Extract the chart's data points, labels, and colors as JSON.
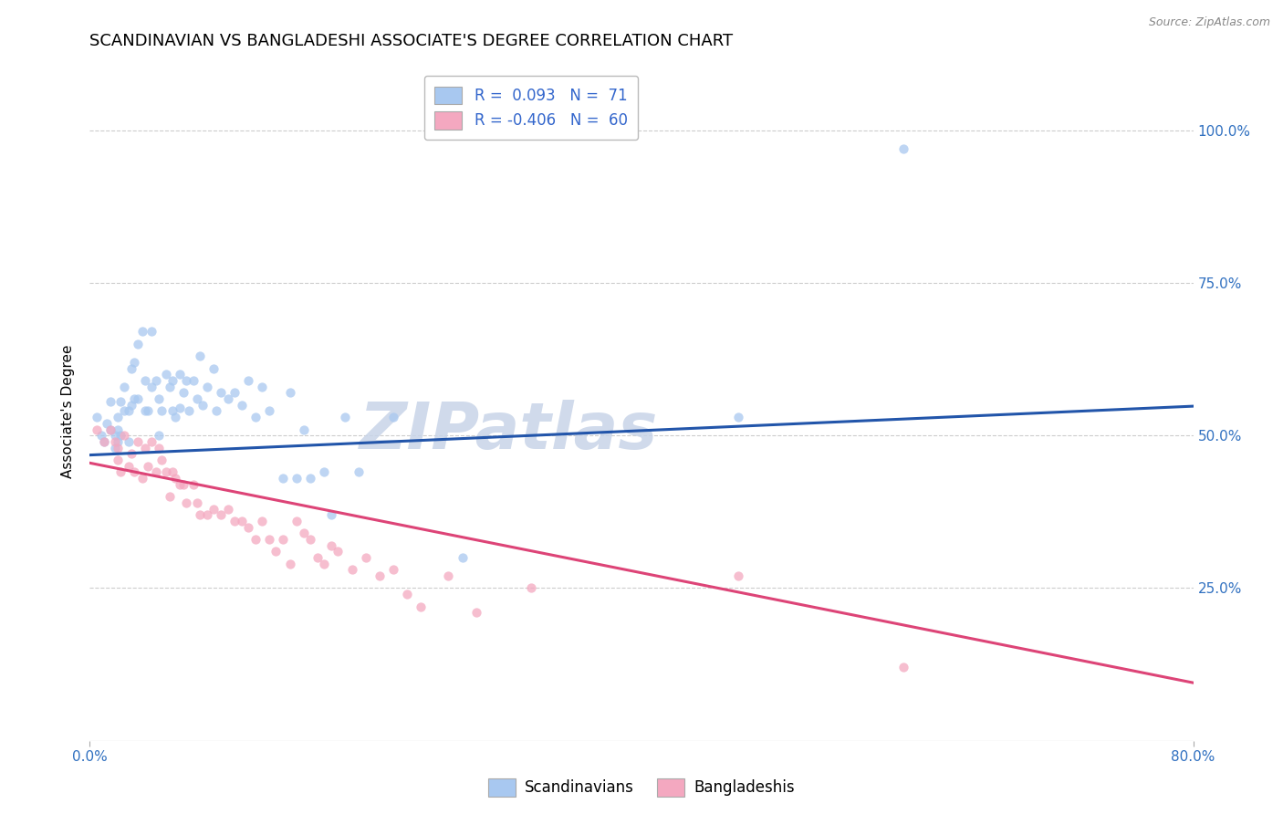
{
  "title": "SCANDINAVIAN VS BANGLADESHI ASSOCIATE'S DEGREE CORRELATION CHART",
  "source": "Source: ZipAtlas.com",
  "ylabel": "Associate's Degree",
  "ytick_labels": [
    "100.0%",
    "75.0%",
    "50.0%",
    "25.0%"
  ],
  "ytick_values": [
    1.0,
    0.75,
    0.5,
    0.25
  ],
  "xlim": [
    0.0,
    0.8
  ],
  "ylim": [
    0.0,
    1.08
  ],
  "watermark": "ZIPatlas",
  "legend_blue_R": "0.093",
  "legend_blue_N": "71",
  "legend_pink_R": "-0.406",
  "legend_pink_N": "60",
  "blue_color": "#A8C8F0",
  "pink_color": "#F4A8C0",
  "line_blue": "#2255AA",
  "line_pink": "#DD4477",
  "scatter_alpha": 0.75,
  "scatter_size": 55,
  "blue_x": [
    0.005,
    0.008,
    0.01,
    0.012,
    0.015,
    0.015,
    0.018,
    0.018,
    0.02,
    0.02,
    0.02,
    0.022,
    0.022,
    0.025,
    0.025,
    0.028,
    0.028,
    0.03,
    0.03,
    0.032,
    0.032,
    0.035,
    0.035,
    0.038,
    0.04,
    0.04,
    0.042,
    0.045,
    0.045,
    0.048,
    0.05,
    0.05,
    0.052,
    0.055,
    0.058,
    0.06,
    0.06,
    0.062,
    0.065,
    0.065,
    0.068,
    0.07,
    0.072,
    0.075,
    0.078,
    0.08,
    0.082,
    0.085,
    0.09,
    0.092,
    0.095,
    0.1,
    0.105,
    0.11,
    0.115,
    0.12,
    0.125,
    0.13,
    0.14,
    0.145,
    0.15,
    0.155,
    0.16,
    0.17,
    0.175,
    0.185,
    0.195,
    0.22,
    0.27,
    0.47,
    0.59
  ],
  "blue_y": [
    0.53,
    0.5,
    0.49,
    0.52,
    0.555,
    0.51,
    0.5,
    0.48,
    0.53,
    0.51,
    0.49,
    0.555,
    0.5,
    0.58,
    0.54,
    0.54,
    0.49,
    0.61,
    0.55,
    0.62,
    0.56,
    0.65,
    0.56,
    0.67,
    0.59,
    0.54,
    0.54,
    0.67,
    0.58,
    0.59,
    0.56,
    0.5,
    0.54,
    0.6,
    0.58,
    0.59,
    0.54,
    0.53,
    0.6,
    0.545,
    0.57,
    0.59,
    0.54,
    0.59,
    0.56,
    0.63,
    0.55,
    0.58,
    0.61,
    0.54,
    0.57,
    0.56,
    0.57,
    0.55,
    0.59,
    0.53,
    0.58,
    0.54,
    0.43,
    0.57,
    0.43,
    0.51,
    0.43,
    0.44,
    0.37,
    0.53,
    0.44,
    0.53,
    0.3,
    0.53,
    0.97
  ],
  "pink_x": [
    0.005,
    0.01,
    0.015,
    0.018,
    0.02,
    0.02,
    0.022,
    0.025,
    0.028,
    0.03,
    0.032,
    0.035,
    0.038,
    0.04,
    0.042,
    0.045,
    0.048,
    0.05,
    0.052,
    0.055,
    0.058,
    0.06,
    0.062,
    0.065,
    0.068,
    0.07,
    0.075,
    0.078,
    0.08,
    0.085,
    0.09,
    0.095,
    0.1,
    0.105,
    0.11,
    0.115,
    0.12,
    0.125,
    0.13,
    0.135,
    0.14,
    0.145,
    0.15,
    0.155,
    0.16,
    0.165,
    0.17,
    0.175,
    0.18,
    0.19,
    0.2,
    0.21,
    0.22,
    0.23,
    0.24,
    0.26,
    0.28,
    0.32,
    0.47,
    0.59
  ],
  "pink_y": [
    0.51,
    0.49,
    0.51,
    0.49,
    0.48,
    0.46,
    0.44,
    0.5,
    0.45,
    0.47,
    0.44,
    0.49,
    0.43,
    0.48,
    0.45,
    0.49,
    0.44,
    0.48,
    0.46,
    0.44,
    0.4,
    0.44,
    0.43,
    0.42,
    0.42,
    0.39,
    0.42,
    0.39,
    0.37,
    0.37,
    0.38,
    0.37,
    0.38,
    0.36,
    0.36,
    0.35,
    0.33,
    0.36,
    0.33,
    0.31,
    0.33,
    0.29,
    0.36,
    0.34,
    0.33,
    0.3,
    0.29,
    0.32,
    0.31,
    0.28,
    0.3,
    0.27,
    0.28,
    0.24,
    0.22,
    0.27,
    0.21,
    0.25,
    0.27,
    0.12
  ],
  "blue_line_x": [
    0.0,
    0.8
  ],
  "blue_line_y": [
    0.468,
    0.548
  ],
  "pink_line_x": [
    0.0,
    0.8
  ],
  "pink_line_y": [
    0.455,
    0.095
  ],
  "grid_color": "#CCCCCC",
  "bg_color": "#FFFFFF",
  "title_fontsize": 13,
  "label_fontsize": 11,
  "tick_fontsize": 11,
  "watermark_fontsize": 52,
  "watermark_color": "#C8D4E8",
  "watermark_alpha": 0.85
}
